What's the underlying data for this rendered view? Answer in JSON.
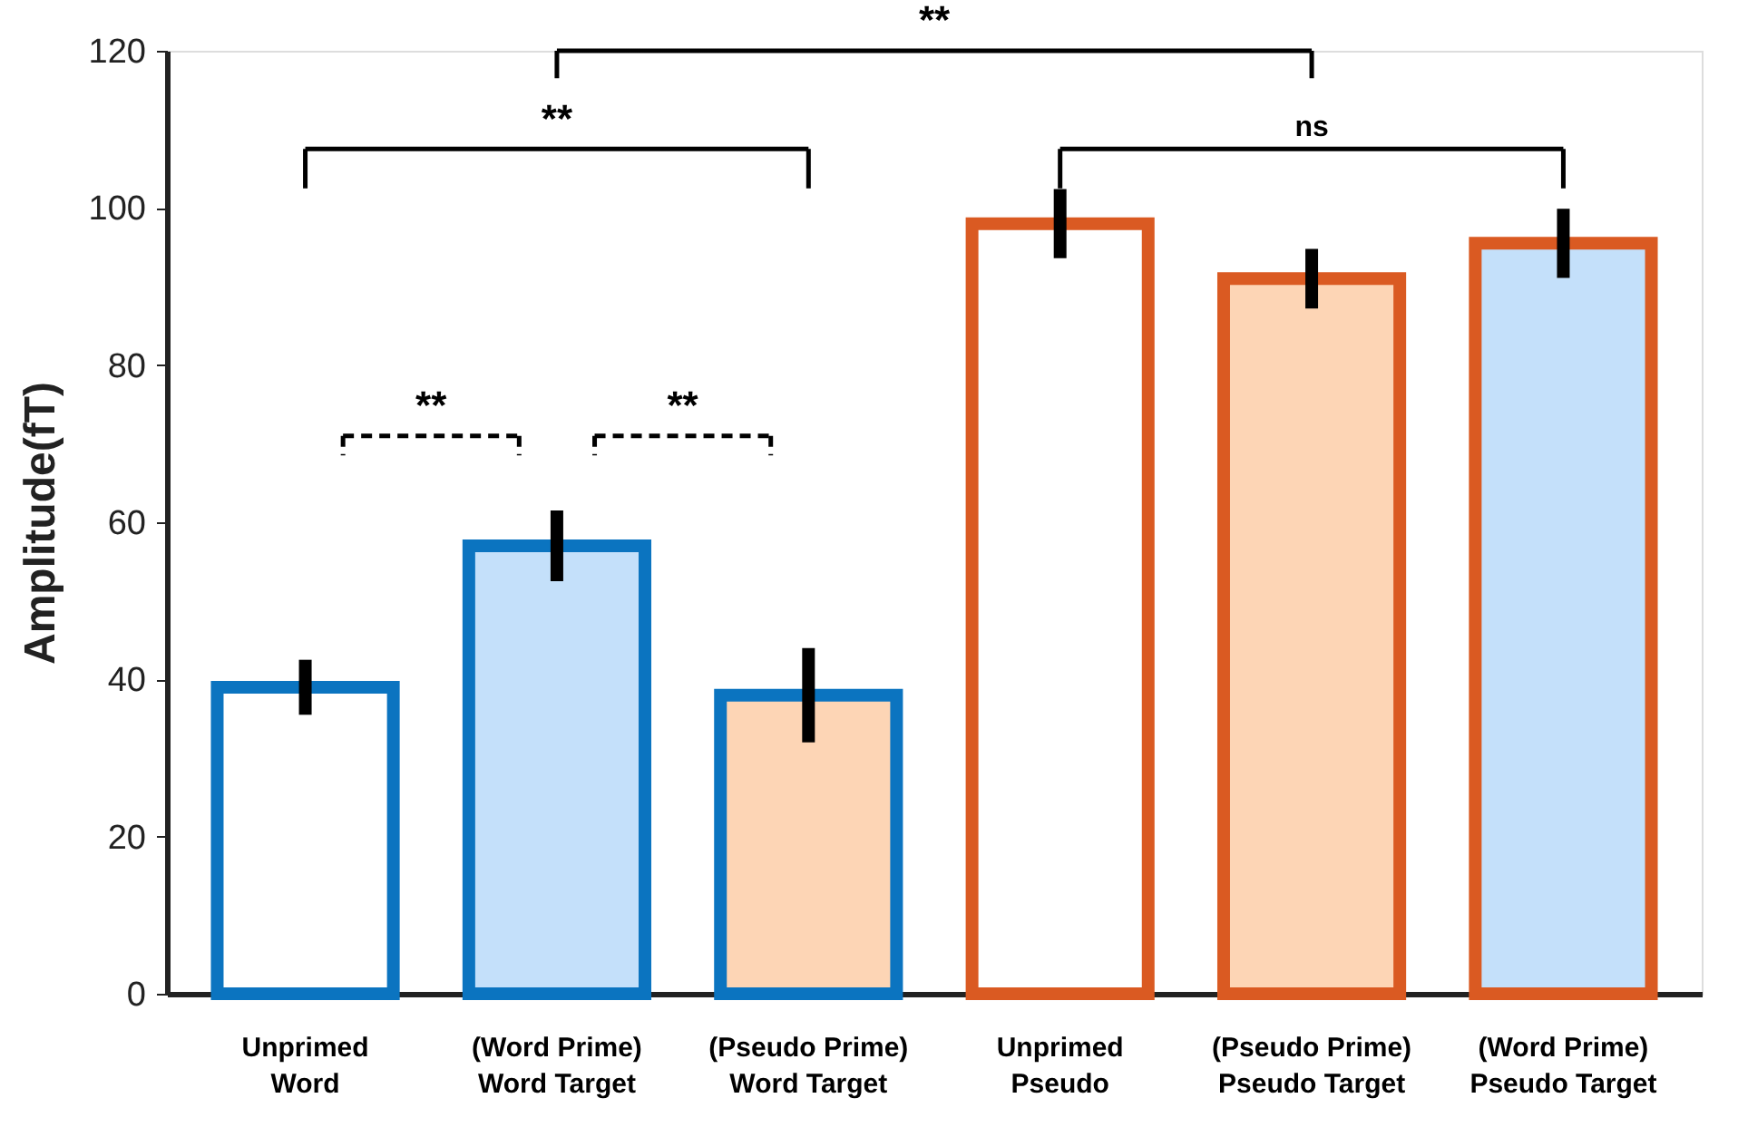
{
  "chart_data": {
    "type": "bar",
    "ylabel": "Amplitude(fT)",
    "categories": [
      "Unprimed\nWord",
      "(Word Prime)\nWord Target",
      "(Pseudo Prime)\nWord Target",
      "Unprimed\nPseudo",
      "(Pseudo Prime)\nPseudo Target",
      "(Word Prime)\nPseudo Target"
    ],
    "colors": [
      "#ffffff",
      "#c4e0fa",
      "#fdd5b5",
      "#ffffff",
      "#fdd5b5",
      "#c4e0fa"
    ],
    "series": [
      {
        "color": "#0b74c0",
        "values": [
          39,
          57,
          38,
          null,
          null,
          null
        ],
        "errors": [
          3.5,
          4.5,
          6,
          null,
          null,
          null
        ]
      },
      {
        "color": "#da5a22",
        "values": [
          null,
          null,
          null,
          98,
          91,
          95.5
        ],
        "errors": [
          null,
          null,
          null,
          4.4,
          3.8,
          4.4
        ]
      }
    ],
    "ylim": [
      0,
      120
    ],
    "yticks": [
      0,
      20,
      40,
      60,
      80,
      100,
      120
    ],
    "annotations": [
      "**",
      "**",
      "ns",
      "**",
      "**"
    ],
    "grid": false
  }
}
